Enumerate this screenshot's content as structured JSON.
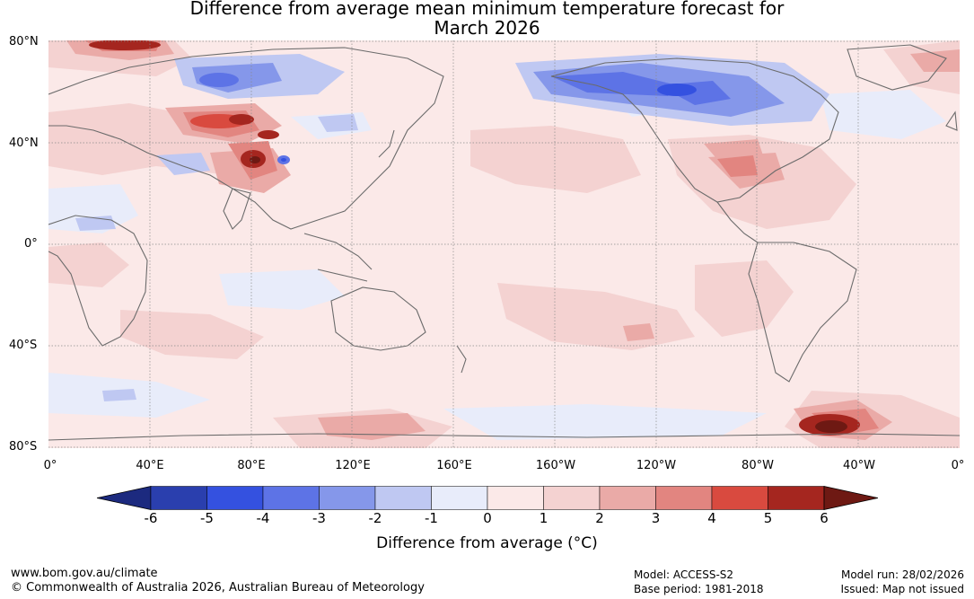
{
  "title": {
    "line1": "Difference from average mean minimum temperature forecast for",
    "line2": "March 2026"
  },
  "map": {
    "lat_labels": [
      "80°N",
      "40°N",
      "0°",
      "40°S",
      "80°S"
    ],
    "lon_labels": [
      "0°",
      "40°E",
      "80°E",
      "120°E",
      "160°E",
      "160°W",
      "120°W",
      "80°W",
      "40°W",
      "0°"
    ],
    "ocean_baseline_color": "#fbe9e8"
  },
  "colorbar": {
    "ticks": [
      "-6",
      "-5",
      "-4",
      "-3",
      "-2",
      "-1",
      "0",
      "1",
      "2",
      "3",
      "4",
      "5",
      "6"
    ],
    "colors": [
      "#1c2a7f",
      "#2a3fae",
      "#3451e0",
      "#5d73e6",
      "#8597ea",
      "#bfc8f2",
      "#e8ecfa",
      "#fbe9e8",
      "#f4d2d1",
      "#eaaaa7",
      "#e28580",
      "#d94a3f",
      "#a5261f",
      "#6e1913"
    ],
    "label": "Difference from average (°C)"
  },
  "footer": {
    "website": "www.bom.gov.au/climate",
    "copyright": "© Commonwealth of Australia 2026, Australian Bureau of Meteorology",
    "model": "Model: ACCESS-S2",
    "base_period": "Base period: 1981-2018",
    "model_run": "Model run: 28/02/2026",
    "issued": "Issued: Map not issued"
  }
}
